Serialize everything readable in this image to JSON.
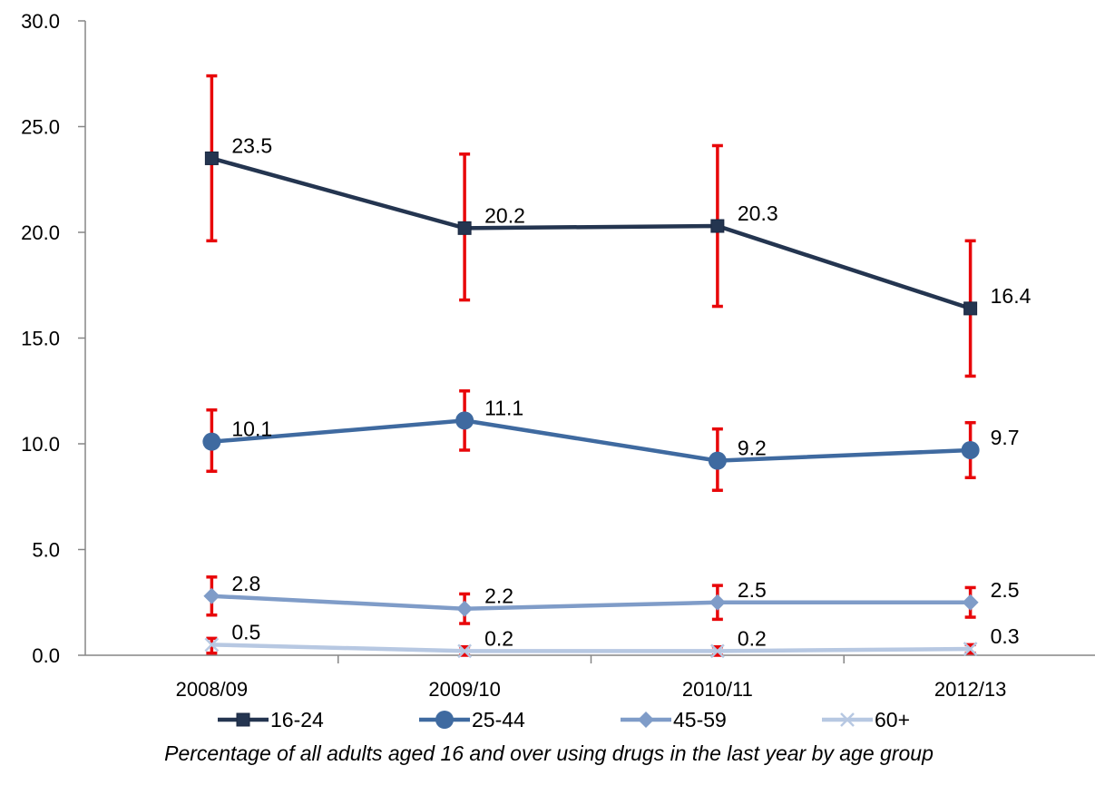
{
  "chart_data": {
    "type": "line",
    "categories": [
      "2008/09",
      "2009/10",
      "2010/11",
      "2012/13"
    ],
    "ylim": [
      0,
      30
    ],
    "yticks": [
      "0.0",
      "5.0",
      "10.0",
      "15.0",
      "20.0",
      "25.0",
      "30.0"
    ],
    "grid": false,
    "legend_position": "bottom",
    "series": [
      {
        "name": "16-24",
        "values": [
          23.5,
          20.2,
          20.3,
          16.4
        ],
        "labels": [
          "23.5",
          "20.2",
          "20.3",
          "16.4"
        ],
        "error_low": [
          19.6,
          16.8,
          16.5,
          13.2
        ],
        "error_high": [
          27.4,
          23.7,
          24.1,
          19.6
        ],
        "color": "#243550",
        "marker": "square"
      },
      {
        "name": "25-44",
        "values": [
          10.1,
          11.1,
          9.2,
          9.7
        ],
        "labels": [
          "10.1",
          "11.1",
          "9.2",
          "9.7"
        ],
        "error_low": [
          8.7,
          9.7,
          7.8,
          8.4
        ],
        "error_high": [
          11.6,
          12.5,
          10.7,
          11.0
        ],
        "color": "#3f6aa0",
        "marker": "circle"
      },
      {
        "name": "45-59",
        "values": [
          2.8,
          2.2,
          2.5,
          2.5
        ],
        "labels": [
          "2.8",
          "2.2",
          "2.5",
          "2.5"
        ],
        "error_low": [
          1.9,
          1.5,
          1.7,
          1.8
        ],
        "error_high": [
          3.7,
          2.9,
          3.3,
          3.2
        ],
        "color": "#7f9cc8",
        "marker": "diamond"
      },
      {
        "name": "60+",
        "values": [
          0.5,
          0.2,
          0.2,
          0.3
        ],
        "labels": [
          "0.5",
          "0.2",
          "0.2",
          "0.3"
        ],
        "error_low": [
          0.1,
          0.0,
          0.0,
          0.1
        ],
        "error_high": [
          0.8,
          0.4,
          0.4,
          0.5
        ],
        "color": "#b7c8e2",
        "marker": "x"
      }
    ],
    "error_bar_color": "#e8070a"
  },
  "caption": "Percentage of all adults aged 16 and over using drugs in the last year by age group"
}
